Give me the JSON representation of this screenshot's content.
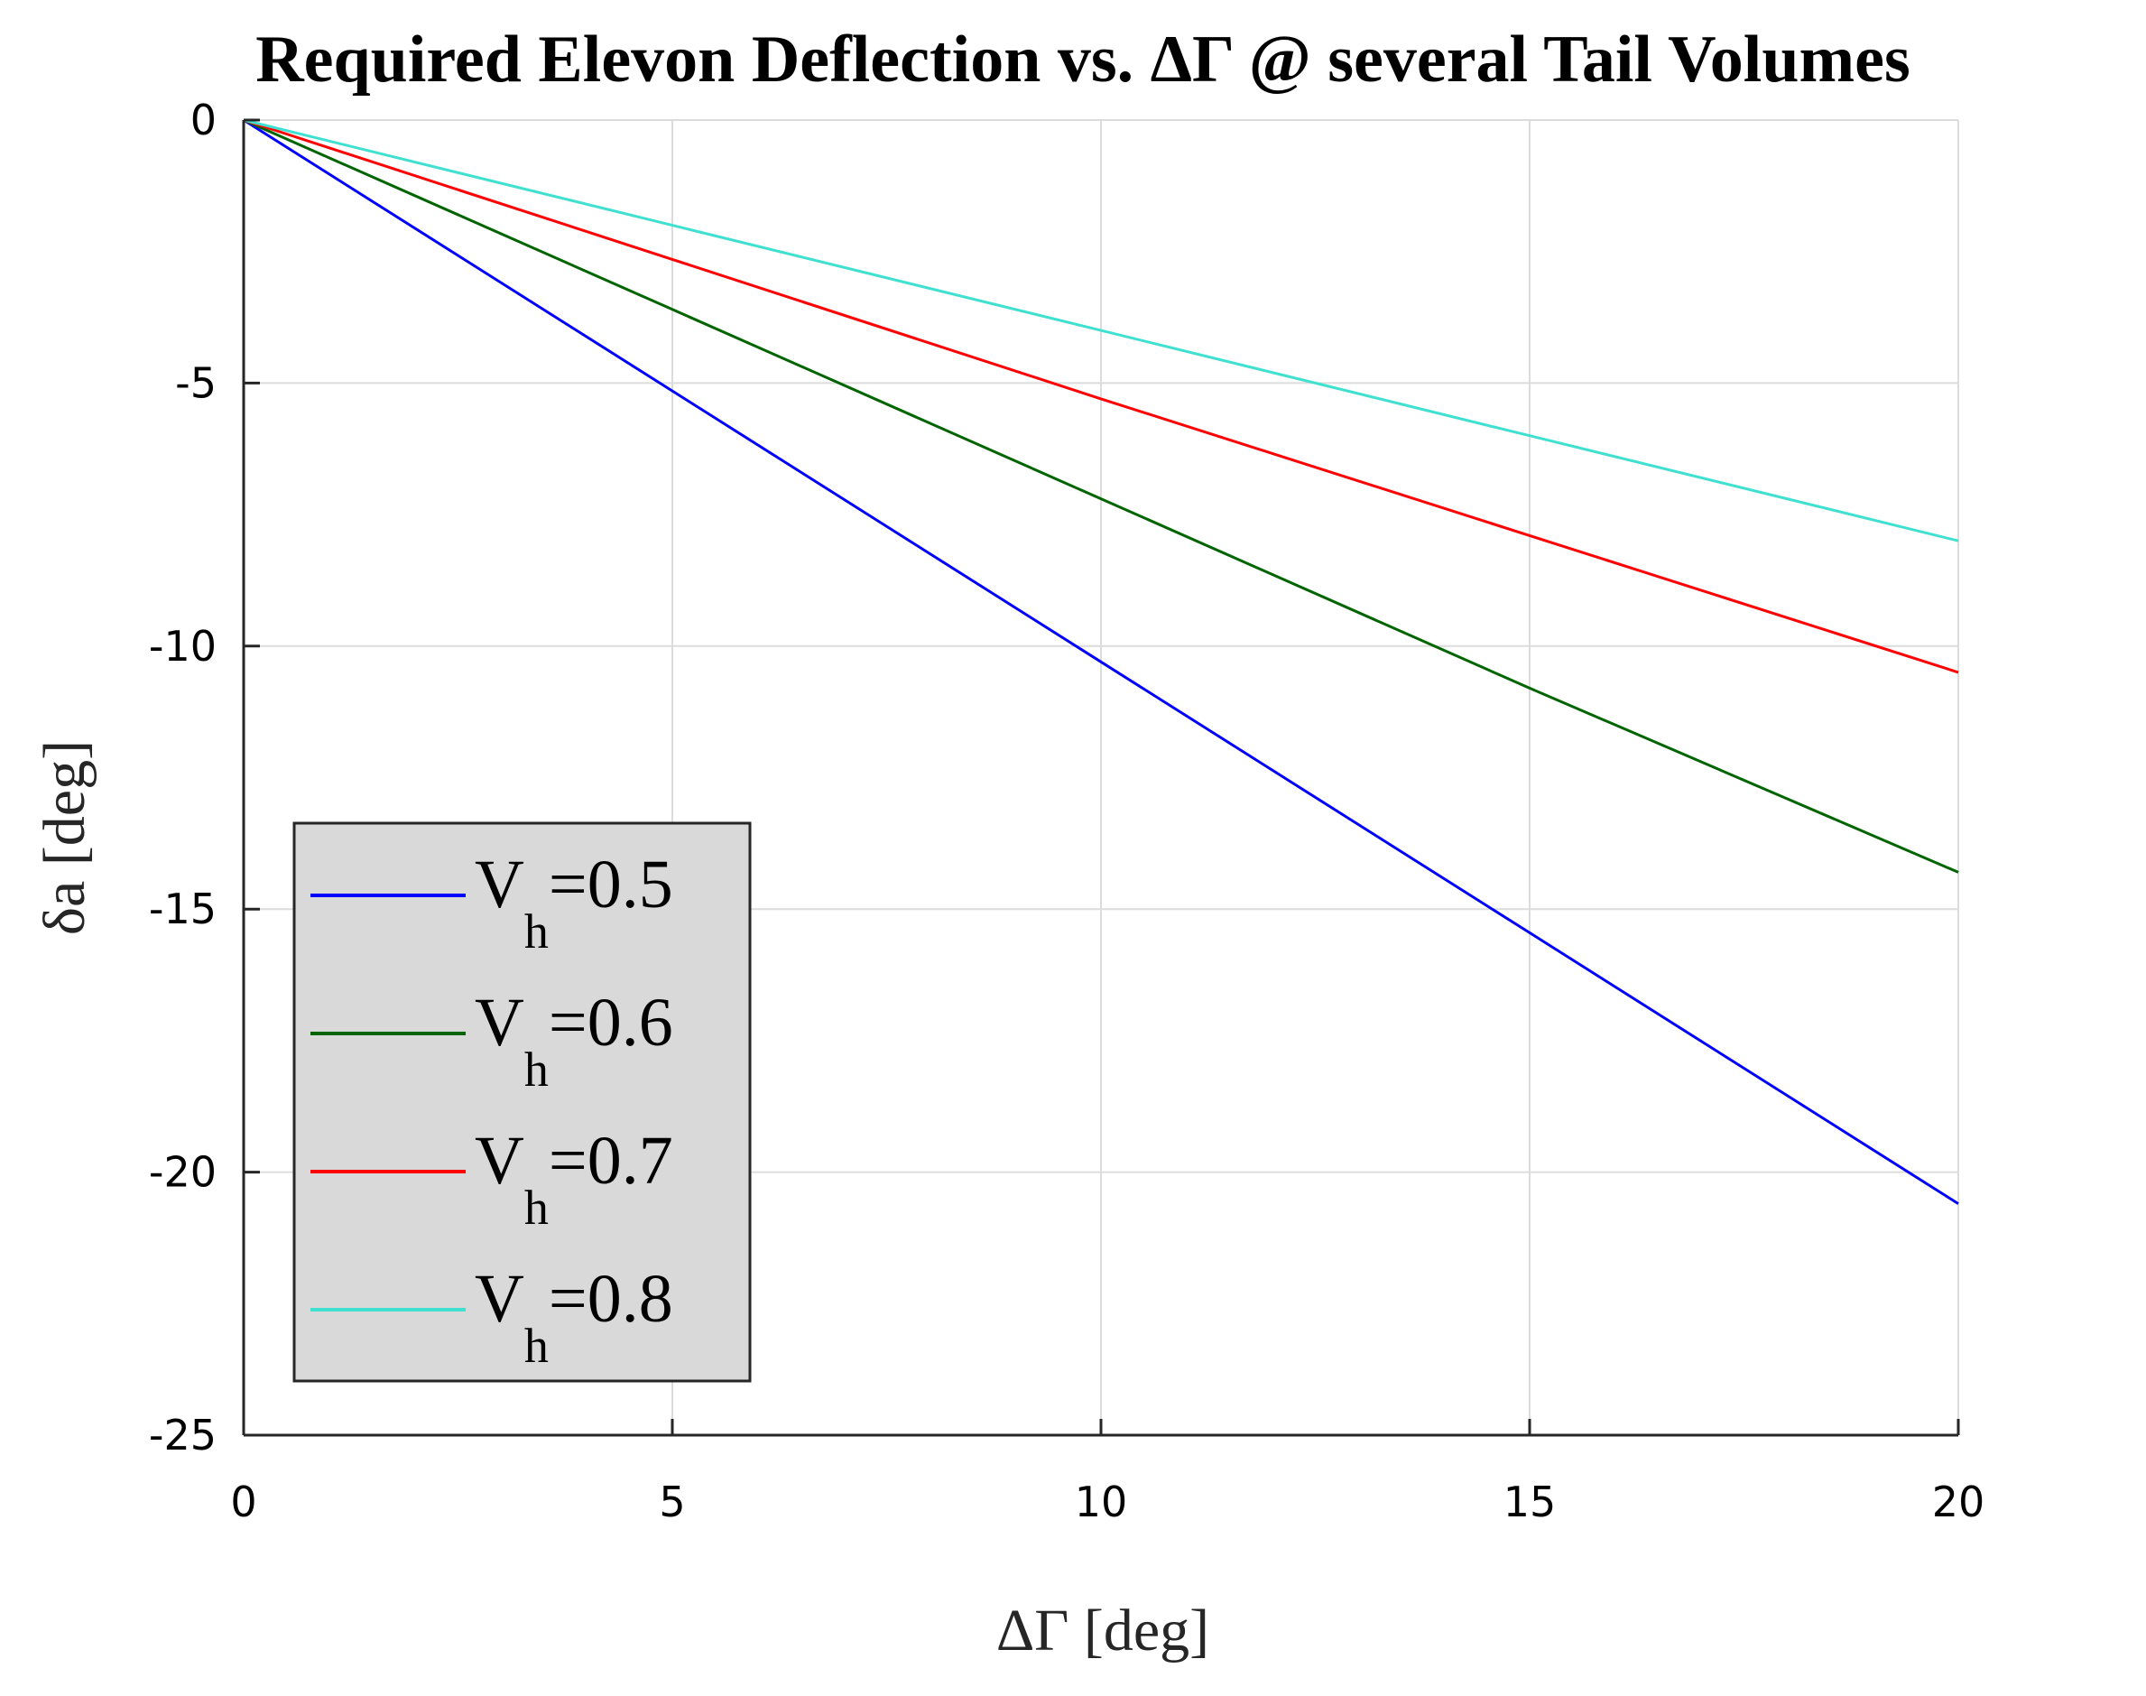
{
  "chart_data": {
    "type": "line",
    "title": "Required Elevon Deflection vs. ΔΓ @ several Tail Volumes",
    "xlabel": "ΔΓ [deg]",
    "ylabel": "δa [deg]",
    "xlim": [
      0,
      20
    ],
    "ylim": [
      -25,
      0
    ],
    "xticks": [
      0,
      5,
      10,
      15,
      20
    ],
    "yticks": [
      0,
      -5,
      -10,
      -15,
      -20,
      -25
    ],
    "xtick_labels": [
      "0",
      "5",
      "10",
      "15",
      "20"
    ],
    "ytick_labels": [
      "0",
      "-5",
      "-10",
      "-15",
      "-20",
      "-25"
    ],
    "grid": true,
    "legend_position": "lower-left",
    "series": [
      {
        "name": "Vh=0.5",
        "label_main": "V",
        "label_sub": "h",
        "label_value": "=0.5",
        "color": "#0000ff",
        "x": [
          0,
          5,
          10,
          15,
          20
        ],
        "values": [
          0,
          -5.15,
          -10.3,
          -15.45,
          -20.6
        ]
      },
      {
        "name": "Vh=0.6",
        "label_main": "V",
        "label_sub": "h",
        "label_value": "=0.6",
        "color": "#006400",
        "x": [
          0,
          5,
          10,
          15,
          20
        ],
        "values": [
          0,
          -3.6,
          -7.2,
          -10.8,
          -14.3
        ]
      },
      {
        "name": "Vh=0.7",
        "label_main": "V",
        "label_sub": "h",
        "label_value": "=0.7",
        "color": "#ff0000",
        "x": [
          0,
          5,
          10,
          15,
          20
        ],
        "values": [
          0,
          -2.65,
          -5.3,
          -7.9,
          -10.5
        ]
      },
      {
        "name": "Vh=0.8",
        "label_main": "V",
        "label_sub": "h",
        "label_value": "=0.8",
        "color": "#40e0d0",
        "x": [
          0,
          5,
          10,
          15,
          20
        ],
        "values": [
          0,
          -2.0,
          -4.0,
          -6.0,
          -8.0
        ]
      }
    ]
  }
}
